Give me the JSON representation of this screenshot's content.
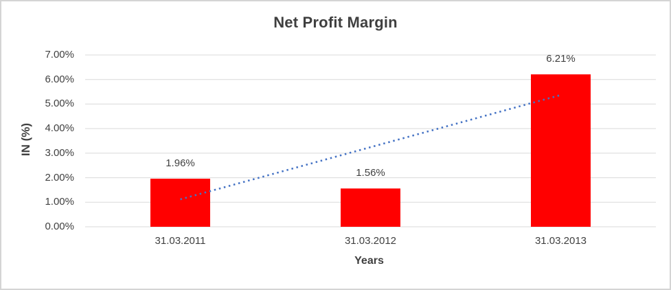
{
  "chart_data": {
    "type": "bar",
    "title": "Net Profit Margin",
    "xlabel": "Years",
    "ylabel": "IN (%)",
    "categories": [
      "31.03.2011",
      "31.03.2012",
      "31.03.2013"
    ],
    "values": [
      1.96,
      1.56,
      6.21
    ],
    "data_labels": [
      "1.96%",
      "1.56%",
      "6.21%"
    ],
    "ytick_labels": [
      "0.00%",
      "1.00%",
      "2.00%",
      "3.00%",
      "4.00%",
      "5.00%",
      "6.00%",
      "7.00%"
    ],
    "ylim": [
      0,
      7
    ],
    "ytick_step": 1,
    "grid": true,
    "legend": false,
    "trendline": {
      "type": "linear",
      "style": "dotted",
      "start_value": 1.12,
      "end_value": 5.37
    }
  },
  "colors": {
    "bar": "#FF0000",
    "trendline": "#4472C4",
    "gridline": "#D9D9D9",
    "title_text": "#3F3F3F",
    "axis_text": "#404040",
    "border": "#D4D4D4",
    "background": "#FFFFFF"
  }
}
